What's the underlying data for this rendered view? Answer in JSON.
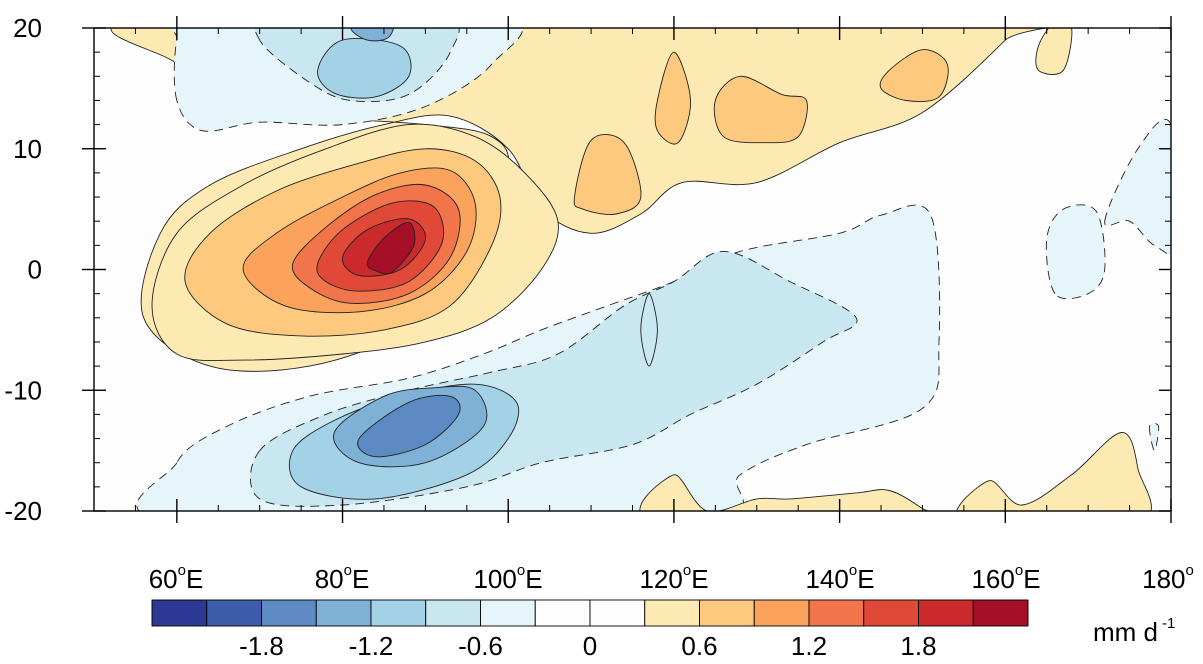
{
  "chart_data": {
    "type": "heatmap",
    "title": "",
    "xlabel": "",
    "ylabel": "",
    "xlim": [
      50,
      180
    ],
    "ylim": [
      -20,
      20
    ],
    "x_tick_labels": [
      "60",
      "80",
      "100",
      "120",
      "140",
      "160",
      "180"
    ],
    "x_tick_suffixes": [
      "E",
      "E",
      "E",
      "E",
      "E",
      "E",
      ""
    ],
    "degree_symbol": "o",
    "y_ticks": [
      20,
      10,
      0,
      -10,
      -20
    ],
    "y_tick_labels": [
      "20",
      "10",
      "0",
      "-10",
      "-20"
    ],
    "contour_levels": [
      -2.1,
      -1.8,
      -1.5,
      -1.2,
      -0.9,
      -0.6,
      -0.3,
      0.3,
      0.6,
      0.9,
      1.2,
      1.5,
      1.8,
      2.1
    ],
    "colorbar": {
      "colors": [
        "#2c3995",
        "#3d5dab",
        "#5d8ac2",
        "#7fb1d6",
        "#a3d1e5",
        "#c8e7f1",
        "#e5f5f9",
        "#fdfdfd",
        "#fdfdfd",
        "#fde9b2",
        "#fdc97e",
        "#fba35d",
        "#f1744b",
        "#e04937",
        "#ca2a2c",
        "#a50f27"
      ],
      "tick_labels": [
        "-1.8",
        "-1.2",
        "-0.6",
        "0",
        "0.6",
        "1.2",
        "1.8"
      ],
      "unit_base": "mm d",
      "unit_exponent": "-1"
    },
    "features": [
      {
        "kind": "positive",
        "max": 2.1,
        "lon": [
          58,
          102
        ],
        "lat": [
          -8,
          13
        ],
        "center": [
          86,
          2
        ]
      },
      {
        "kind": "positive",
        "max": 0.9,
        "lon": [
          100,
          165
        ],
        "lat": [
          5,
          20
        ],
        "center": [
          118,
          15
        ]
      },
      {
        "kind": "negative",
        "min": -1.5,
        "lon": [
          60,
          97
        ],
        "lat": [
          12,
          20
        ],
        "center": [
          84,
          18
        ]
      },
      {
        "kind": "negative",
        "min": -1.5,
        "lon": [
          60,
          120
        ],
        "lat": [
          -20,
          -6
        ],
        "center": [
          90,
          -13
        ]
      },
      {
        "kind": "negative",
        "min": -0.6,
        "lon": [
          108,
          150
        ],
        "lat": [
          -12,
          5
        ],
        "center": [
          130,
          -3
        ]
      },
      {
        "kind": "negative",
        "min": -0.3,
        "lon": [
          166,
          180
        ],
        "lat": [
          -2,
          12
        ],
        "center": [
          172,
          3
        ]
      },
      {
        "kind": "positive",
        "max": 0.3,
        "lon": [
          120,
          171
        ],
        "lat": [
          -20,
          -14
        ],
        "center": [
          160,
          -18
        ]
      }
    ]
  }
}
